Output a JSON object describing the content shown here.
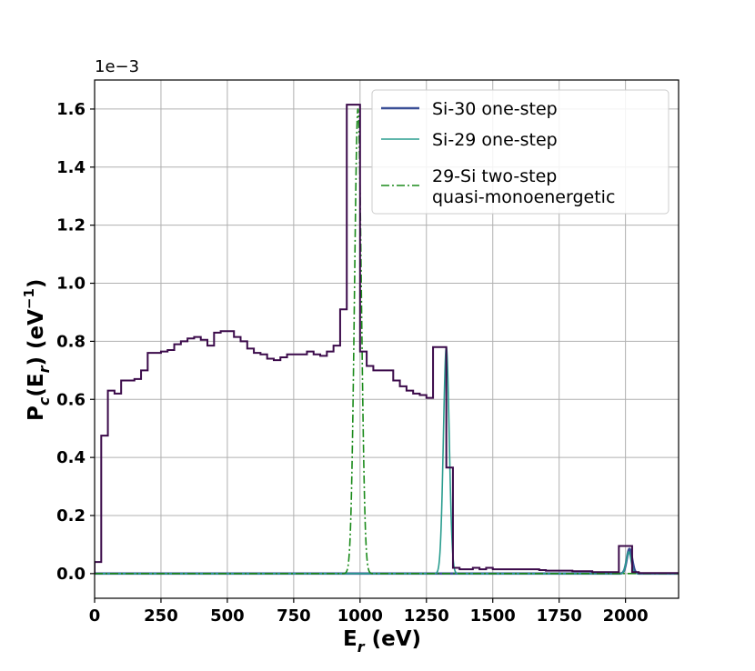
{
  "chart_data": {
    "type": "line",
    "xlabel": "E_r (eV)",
    "ylabel": "P_c(E_r) (eV^-1)",
    "xlim": [
      0,
      2200
    ],
    "ylim": [
      -0.085,
      1.7
    ],
    "y_scale_note": "1e−3",
    "x_ticks": [
      0,
      250,
      500,
      750,
      1000,
      1250,
      1500,
      1750,
      2000
    ],
    "x_tick_labels": [
      "0",
      "250",
      "500",
      "750",
      "1000",
      "1250",
      "1500",
      "1750",
      "2000"
    ],
    "y_ticks": [
      0.0,
      0.2,
      0.4,
      0.6,
      0.8,
      1.0,
      1.2,
      1.4,
      1.6
    ],
    "y_tick_labels": [
      "0.0",
      "0.2",
      "0.4",
      "0.6",
      "0.8",
      "1.0",
      "1.2",
      "1.4",
      "1.6"
    ],
    "grid": true,
    "legend_position": "top-right",
    "histogram": {
      "color": "#3b0a4a",
      "edges": [
        0,
        25,
        50,
        75,
        100,
        125,
        150,
        175,
        200,
        225,
        250,
        275,
        300,
        325,
        350,
        375,
        400,
        425,
        450,
        475,
        500,
        525,
        550,
        575,
        600,
        625,
        650,
        675,
        700,
        725,
        750,
        775,
        800,
        825,
        850,
        875,
        900,
        925,
        950,
        975,
        1000,
        1025,
        1050,
        1075,
        1100,
        1125,
        1150,
        1175,
        1200,
        1225,
        1250,
        1275,
        1300,
        1325,
        1350,
        1375,
        1400,
        1425,
        1450,
        1475,
        1500,
        1525,
        1550,
        1575,
        1600,
        1625,
        1650,
        1675,
        1700,
        1725,
        1750,
        1775,
        1800,
        1825,
        1850,
        1875,
        1900,
        1925,
        1950,
        1975,
        2000,
        2025,
        2050,
        2075,
        2100,
        2125,
        2150,
        2200
      ],
      "values": [
        0.04,
        0.475,
        0.63,
        0.62,
        0.665,
        0.665,
        0.67,
        0.7,
        0.76,
        0.76,
        0.765,
        0.77,
        0.79,
        0.8,
        0.81,
        0.815,
        0.805,
        0.785,
        0.83,
        0.835,
        0.835,
        0.815,
        0.8,
        0.775,
        0.76,
        0.755,
        0.74,
        0.735,
        0.745,
        0.755,
        0.755,
        0.755,
        0.765,
        0.755,
        0.75,
        0.765,
        0.785,
        0.91,
        1.615,
        1.615,
        0.765,
        0.715,
        0.7,
        0.7,
        0.7,
        0.665,
        0.645,
        0.63,
        0.62,
        0.615,
        0.605,
        0.78,
        0.78,
        0.365,
        0.02,
        0.015,
        0.015,
        0.02,
        0.015,
        0.02,
        0.015,
        0.015,
        0.015,
        0.015,
        0.015,
        0.015,
        0.015,
        0.012,
        0.01,
        0.01,
        0.01,
        0.01,
        0.008,
        0.008,
        0.008,
        0.005,
        0.005,
        0.005,
        0.005,
        0.095,
        0.095,
        0.005,
        0.002,
        0.002,
        0.002,
        0.002,
        0.002
      ]
    },
    "series": [
      {
        "name": "Si-30 one-step",
        "color": "#3a4f96",
        "style": "solid",
        "stroke_width_pt": 2.6,
        "peaks": [
          {
            "center": 2015,
            "sigma": 10,
            "height": 0.085
          }
        ]
      },
      {
        "name": "Si-29 one-step",
        "color": "#2a9d8f",
        "style": "solid",
        "stroke_width_pt": 1.6,
        "peaks": [
          {
            "center": 1325,
            "sigma": 11,
            "height": 0.78
          },
          {
            "center": 2012,
            "sigma": 9,
            "height": 0.075
          }
        ]
      },
      {
        "name": "29-Si two-step\nquasi-monoenergetic",
        "color": "#1a8a1a",
        "style": "dashdot",
        "stroke_width_pt": 1.6,
        "peaks": [
          {
            "center": 992,
            "sigma": 13,
            "height": 1.6
          }
        ]
      }
    ]
  }
}
